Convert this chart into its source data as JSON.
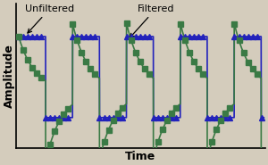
{
  "title": "",
  "xlabel": "Time",
  "ylabel": "Amplitude",
  "background_color": "#d4ccbc",
  "plot_bg_color": "#d4ccbc",
  "unfiltered_color": "#2222bb",
  "filtered_color": "#3a7a45",
  "legend_unfiltered": "Unfiltered",
  "legend_filtered": "Filtered",
  "marker_unfiltered": "^",
  "marker_filtered": "s",
  "markersize_unfiltered": 4,
  "markersize_filtered": 4,
  "high_val": 0.72,
  "low_val": -0.35,
  "filtered_low_extra": -0.18,
  "period": 1.0,
  "n_cycles": 4.55,
  "tau": 0.3,
  "annot_fontsize": 8
}
